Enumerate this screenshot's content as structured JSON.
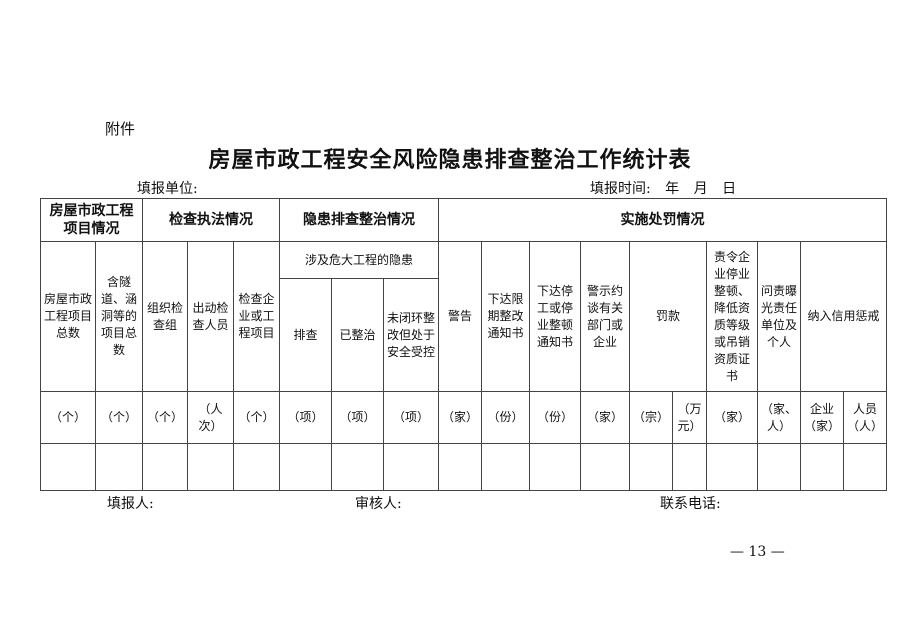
{
  "attachment_label": "附件",
  "title": "房屋市政工程安全风险隐患排查整治工作统计表",
  "fill_unit": "填报单位:",
  "fill_time": "填报时间: 年 月 日",
  "groups": {
    "project": "房屋市政工程项目情况",
    "inspection": "检查执法情况",
    "hazard": "隐患排查整治情况",
    "penalty": "实施处罚情况"
  },
  "hazard_sub": "涉及危大工程的隐患",
  "columns": [
    {
      "label": "房屋市政工程项目总数",
      "unit": "（个）"
    },
    {
      "label": "含隧道、涵洞等的项目总数",
      "unit": "（个）"
    },
    {
      "label": "组织检查组",
      "unit": "（个）"
    },
    {
      "label": "出动检查人员",
      "unit": "（人次）"
    },
    {
      "label": "检查企业或工程项目",
      "unit": "（个）"
    },
    {
      "label": "排查",
      "unit": "（项）"
    },
    {
      "label": "已整治",
      "unit": "（项）"
    },
    {
      "label": "未闭环整改但处于安全受控",
      "unit": "（项）"
    },
    {
      "label": "警告",
      "unit": "（家）"
    },
    {
      "label": "下达限期整改通知书",
      "unit": "（份）"
    },
    {
      "label": "下达停工或停业整顿通知书",
      "unit": "（份）"
    },
    {
      "label": "警示约谈有关部门或企业",
      "unit": "（家）"
    },
    {
      "label": "罚款",
      "units": [
        "（宗）",
        "（万元）"
      ]
    },
    {
      "label": "责令企业停业整顿、降低资质等级或吊销资质证书",
      "unit": "（家）"
    },
    {
      "label": "问责曝光责任单位及个人",
      "unit": "（家、人）"
    },
    {
      "label": "纳入信用惩戒",
      "units": [
        "企业（家）",
        "人员（人）"
      ]
    }
  ],
  "footer": {
    "filler": "填报人:",
    "reviewer": "审核人:",
    "phone": "联系电话:"
  },
  "page_number": "— 13 —"
}
